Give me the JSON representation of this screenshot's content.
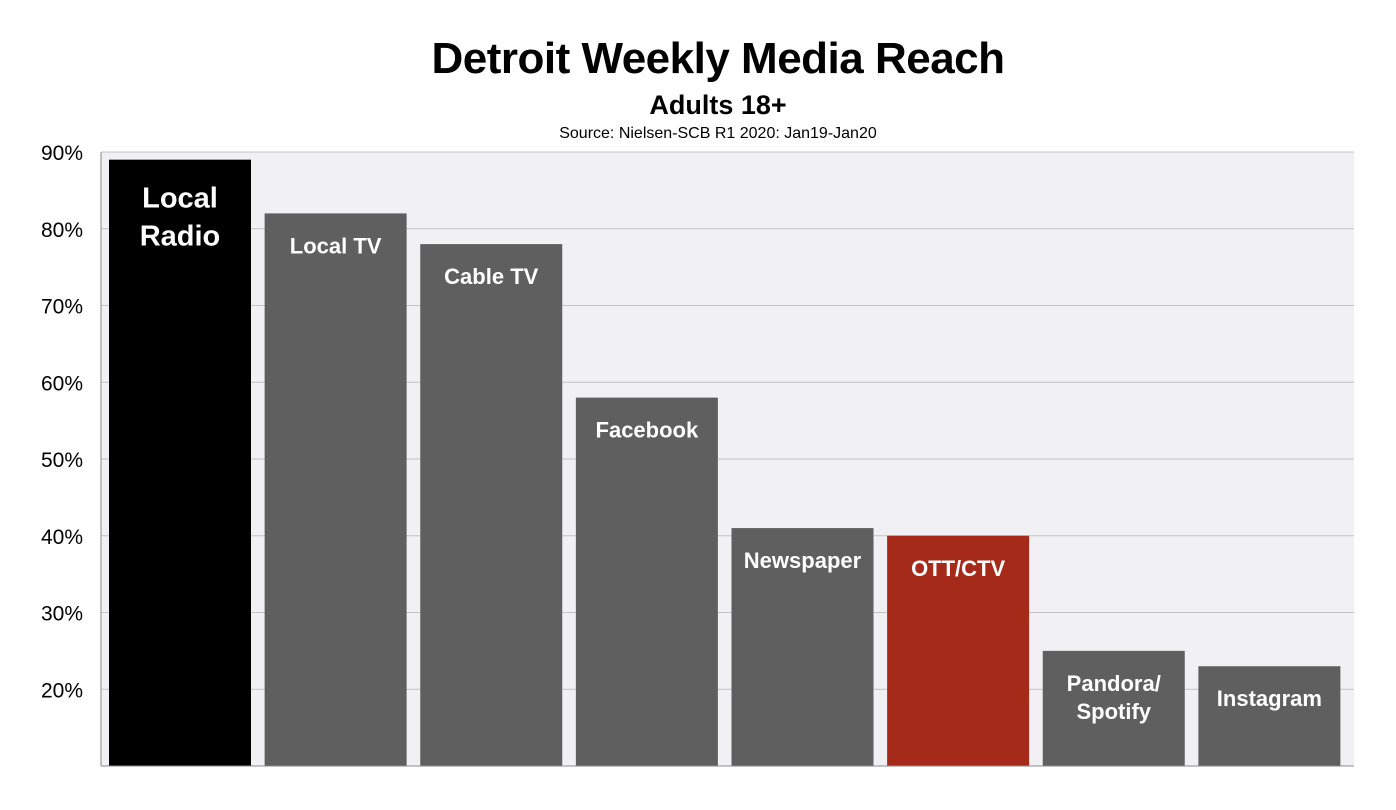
{
  "chart_data": {
    "type": "bar",
    "title": "Detroit Weekly Media Reach",
    "subtitle": "Adults 18+",
    "source": "Source: Nielsen-SCB R1 2020: Jan19-Jan20",
    "xlabel": "",
    "ylabel": "",
    "ylim": [
      10,
      90
    ],
    "yticks": [
      20,
      30,
      40,
      50,
      60,
      70,
      80,
      90
    ],
    "ytick_labels": [
      "20%",
      "30%",
      "40%",
      "50%",
      "60%",
      "70%",
      "80%",
      "90%"
    ],
    "grid": true,
    "legend": "none",
    "background_color": "#f1f1f3",
    "gridline_color": "#c4c4c4",
    "categories": [
      "Local Radio",
      "Local TV",
      "Cable TV",
      "Facebook",
      "Newspaper",
      "OTT/CTV",
      "Pandora/ Spotify",
      "Instagram"
    ],
    "category_label_lines": [
      [
        "Local",
        "Radio"
      ],
      [
        "Local TV"
      ],
      [
        "Cable TV"
      ],
      [
        "Facebook"
      ],
      [
        "Newspaper"
      ],
      [
        "OTT/CTV"
      ],
      [
        "Pandora/",
        "Spotify"
      ],
      [
        "Instagram"
      ]
    ],
    "values": [
      89,
      82,
      78,
      58,
      41,
      40,
      25,
      23
    ],
    "bar_colors": [
      "#000000",
      "#5f5f5f",
      "#5f5f5f",
      "#5f5f5f",
      "#5f5f5f",
      "#a52a1a",
      "#5f5f5f",
      "#5f5f5f"
    ]
  }
}
